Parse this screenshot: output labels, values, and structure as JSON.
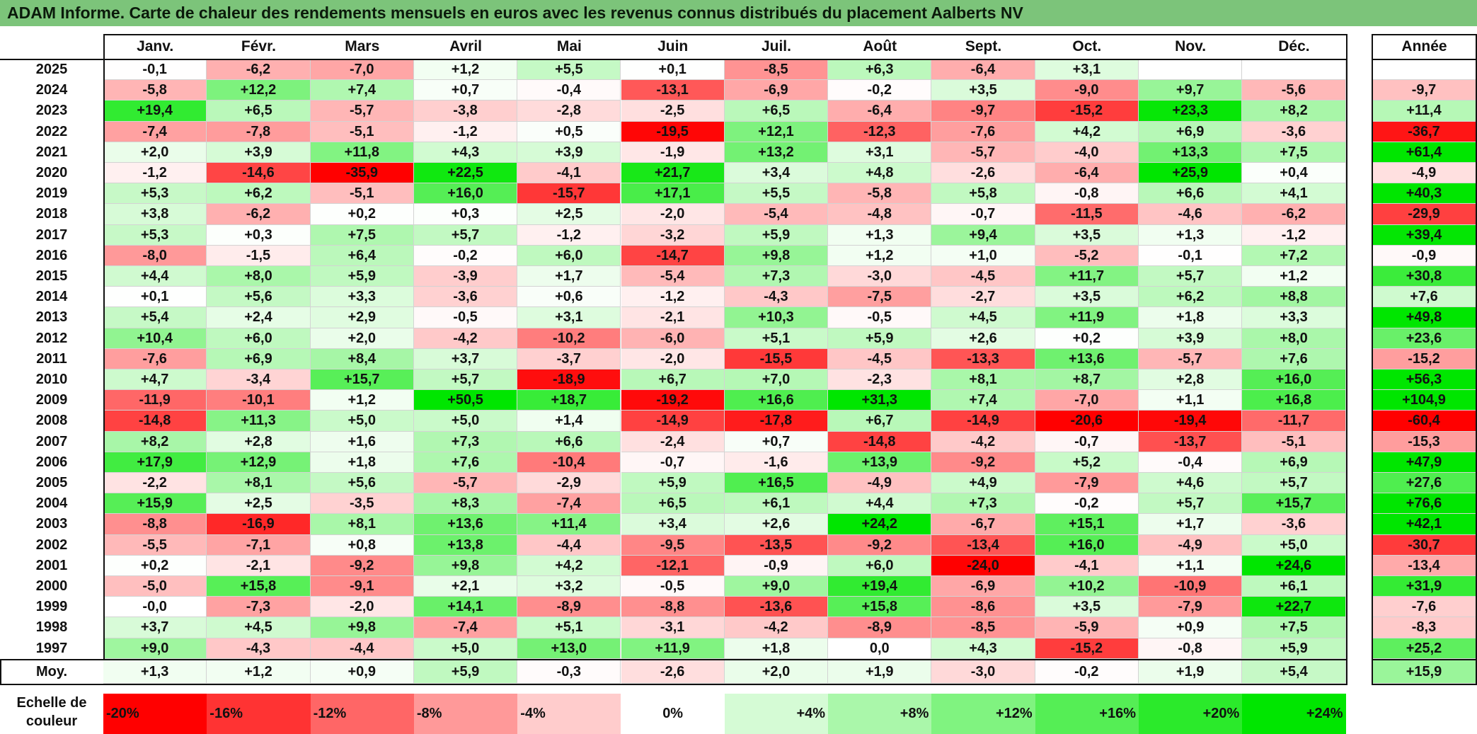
{
  "title": "ADAM Informe. Carte de chaleur des rendements mensuels en euros avec les revenus connus distribués du placement Aalberts NV",
  "chart_data": {
    "type": "heatmap",
    "months": [
      "Janv.",
      "Févr.",
      "Mars",
      "Avril",
      "Mai",
      "Juin",
      "Juil.",
      "Août",
      "Sept.",
      "Oct.",
      "Nov.",
      "Déc."
    ],
    "annual_header": "Année",
    "rows": [
      {
        "year": "2025",
        "values": [
          "-0,1",
          "-6,2",
          "-7,0",
          "+1,2",
          "+5,5",
          "+0,1",
          "-8,5",
          "+6,3",
          "-6,4",
          "+3,1",
          "",
          ""
        ],
        "annual": ""
      },
      {
        "year": "2024",
        "values": [
          "-5,8",
          "+12,2",
          "+7,4",
          "+0,7",
          "-0,4",
          "-13,1",
          "-6,9",
          "-0,2",
          "+3,5",
          "-9,0",
          "+9,7",
          "-5,6"
        ],
        "annual": "-9,7"
      },
      {
        "year": "2023",
        "values": [
          "+19,4",
          "+6,5",
          "-5,7",
          "-3,8",
          "-2,8",
          "-2,5",
          "+6,5",
          "-6,4",
          "-9,7",
          "-15,2",
          "+23,3",
          "+8,2"
        ],
        "annual": "+11,4"
      },
      {
        "year": "2022",
        "values": [
          "-7,4",
          "-7,8",
          "-5,1",
          "-1,2",
          "+0,5",
          "-19,5",
          "+12,1",
          "-12,3",
          "-7,6",
          "+4,2",
          "+6,9",
          "-3,6"
        ],
        "annual": "-36,7"
      },
      {
        "year": "2021",
        "values": [
          "+2,0",
          "+3,9",
          "+11,8",
          "+4,3",
          "+3,9",
          "-1,9",
          "+13,2",
          "+3,1",
          "-5,7",
          "-4,0",
          "+13,3",
          "+7,5"
        ],
        "annual": "+61,4"
      },
      {
        "year": "2020",
        "values": [
          "-1,2",
          "-14,6",
          "-35,9",
          "+22,5",
          "-4,1",
          "+21,7",
          "+3,4",
          "+4,8",
          "-2,6",
          "-6,4",
          "+25,9",
          "+0,4"
        ],
        "annual": "-4,9"
      },
      {
        "year": "2019",
        "values": [
          "+5,3",
          "+6,2",
          "-5,1",
          "+16,0",
          "-15,7",
          "+17,1",
          "+5,5",
          "-5,8",
          "+5,8",
          "-0,8",
          "+6,6",
          "+4,1"
        ],
        "annual": "+40,3"
      },
      {
        "year": "2018",
        "values": [
          "+3,8",
          "-6,2",
          "+0,2",
          "+0,3",
          "+2,5",
          "-2,0",
          "-5,4",
          "-4,8",
          "-0,7",
          "-11,5",
          "-4,6",
          "-6,2"
        ],
        "annual": "-29,9"
      },
      {
        "year": "2017",
        "values": [
          "+5,3",
          "+0,3",
          "+7,5",
          "+5,7",
          "-1,2",
          "-3,2",
          "+5,9",
          "+1,3",
          "+9,4",
          "+3,5",
          "+1,3",
          "-1,2"
        ],
        "annual": "+39,4"
      },
      {
        "year": "2016",
        "values": [
          "-8,0",
          "-1,5",
          "+6,4",
          "-0,2",
          "+6,0",
          "-14,7",
          "+9,8",
          "+1,2",
          "+1,0",
          "-5,2",
          "-0,1",
          "+7,2"
        ],
        "annual": "-0,9"
      },
      {
        "year": "2015",
        "values": [
          "+4,4",
          "+8,0",
          "+5,9",
          "-3,9",
          "+1,7",
          "-5,4",
          "+7,3",
          "-3,0",
          "-4,5",
          "+11,7",
          "+5,7",
          "+1,2"
        ],
        "annual": "+30,8"
      },
      {
        "year": "2014",
        "values": [
          "+0,1",
          "+5,6",
          "+3,3",
          "-3,6",
          "+0,6",
          "-1,2",
          "-4,3",
          "-7,5",
          "-2,7",
          "+3,5",
          "+6,2",
          "+8,8"
        ],
        "annual": "+7,6"
      },
      {
        "year": "2013",
        "values": [
          "+5,4",
          "+2,4",
          "+2,9",
          "-0,5",
          "+3,1",
          "-2,1",
          "+10,3",
          "-0,5",
          "+4,5",
          "+11,9",
          "+1,8",
          "+3,3"
        ],
        "annual": "+49,8"
      },
      {
        "year": "2012",
        "values": [
          "+10,4",
          "+6,0",
          "+2,0",
          "-4,2",
          "-10,2",
          "-6,0",
          "+5,1",
          "+5,9",
          "+2,6",
          "+0,2",
          "+3,9",
          "+8,0"
        ],
        "annual": "+23,6"
      },
      {
        "year": "2011",
        "values": [
          "-7,6",
          "+6,9",
          "+8,4",
          "+3,7",
          "-3,7",
          "-2,0",
          "-15,5",
          "-4,5",
          "-13,3",
          "+13,6",
          "-5,7",
          "+7,6"
        ],
        "annual": "-15,2"
      },
      {
        "year": "2010",
        "values": [
          "+4,7",
          "-3,4",
          "+15,7",
          "+5,7",
          "-18,9",
          "+6,7",
          "+7,0",
          "-2,3",
          "+8,1",
          "+8,7",
          "+2,8",
          "+16,0"
        ],
        "annual": "+56,3"
      },
      {
        "year": "2009",
        "values": [
          "-11,9",
          "-10,1",
          "+1,2",
          "+50,5",
          "+18,7",
          "-19,2",
          "+16,6",
          "+31,3",
          "+7,4",
          "-7,0",
          "+1,1",
          "+16,8"
        ],
        "annual": "+104,9"
      },
      {
        "year": "2008",
        "values": [
          "-14,8",
          "+11,3",
          "+5,0",
          "+5,0",
          "+1,4",
          "-14,9",
          "-17,8",
          "+6,7",
          "-14,9",
          "-20,6",
          "-19,4",
          "-11,7"
        ],
        "annual": "-60,4"
      },
      {
        "year": "2007",
        "values": [
          "+8,2",
          "+2,8",
          "+1,6",
          "+7,3",
          "+6,6",
          "-2,4",
          "+0,7",
          "-14,8",
          "-4,2",
          "-0,7",
          "-13,7",
          "-5,1"
        ],
        "annual": "-15,3"
      },
      {
        "year": "2006",
        "values": [
          "+17,9",
          "+12,9",
          "+1,8",
          "+7,6",
          "-10,4",
          "-0,7",
          "-1,6",
          "+13,9",
          "-9,2",
          "+5,2",
          "-0,4",
          "+6,9"
        ],
        "annual": "+47,9"
      },
      {
        "year": "2005",
        "values": [
          "-2,2",
          "+8,1",
          "+5,6",
          "-5,7",
          "-2,9",
          "+5,9",
          "+16,5",
          "-4,9",
          "+4,9",
          "-7,9",
          "+4,6",
          "+5,7"
        ],
        "annual": "+27,6"
      },
      {
        "year": "2004",
        "values": [
          "+15,9",
          "+2,5",
          "-3,5",
          "+8,3",
          "-7,4",
          "+6,5",
          "+6,1",
          "+4,4",
          "+7,3",
          "-0,2",
          "+5,7",
          "+15,7"
        ],
        "annual": "+76,6"
      },
      {
        "year": "2003",
        "values": [
          "-8,8",
          "-16,9",
          "+8,1",
          "+13,6",
          "+11,4",
          "+3,4",
          "+2,6",
          "+24,2",
          "-6,7",
          "+15,1",
          "+1,7",
          "-3,6"
        ],
        "annual": "+42,1"
      },
      {
        "year": "2002",
        "values": [
          "-5,5",
          "-7,1",
          "+0,8",
          "+13,8",
          "-4,4",
          "-9,5",
          "-13,5",
          "-9,2",
          "-13,4",
          "+16,0",
          "-4,9",
          "+5,0"
        ],
        "annual": "-30,7"
      },
      {
        "year": "2001",
        "values": [
          "+0,2",
          "-2,1",
          "-9,2",
          "+9,8",
          "+4,2",
          "-12,1",
          "-0,9",
          "+6,0",
          "-24,0",
          "-4,1",
          "+1,1",
          "+24,6"
        ],
        "annual": "-13,4"
      },
      {
        "year": "2000",
        "values": [
          "-5,0",
          "+15,8",
          "-9,1",
          "+2,1",
          "+3,2",
          "-0,5",
          "+9,0",
          "+19,4",
          "-6,9",
          "+10,2",
          "-10,9",
          "+6,1"
        ],
        "annual": "+31,9"
      },
      {
        "year": "1999",
        "values": [
          "-0,0",
          "-7,3",
          "-2,0",
          "+14,1",
          "-8,9",
          "-8,8",
          "-13,6",
          "+15,8",
          "-8,6",
          "+3,5",
          "-7,9",
          "+22,7"
        ],
        "annual": "-7,6"
      },
      {
        "year": "1998",
        "values": [
          "+3,7",
          "+4,5",
          "+9,8",
          "-7,4",
          "+5,1",
          "-3,1",
          "-4,2",
          "-8,9",
          "-8,5",
          "-5,9",
          "+0,9",
          "+7,5"
        ],
        "annual": "-8,3"
      },
      {
        "year": "1997",
        "values": [
          "+9,0",
          "-4,3",
          "-4,4",
          "+5,0",
          "+13,0",
          "+11,9",
          "+1,8",
          "0,0",
          "+4,3",
          "-15,2",
          "-0,8",
          "+5,9"
        ],
        "annual": "+25,2"
      }
    ],
    "average": {
      "label": "Moy.",
      "values": [
        "+1,3",
        "+1,2",
        "+0,9",
        "+5,9",
        "-0,3",
        "-2,6",
        "+2,0",
        "+1,9",
        "-3,0",
        "-0,2",
        "+1,9",
        "+5,4"
      ],
      "annual": "+15,9"
    },
    "color_scale": {
      "label": "Echelle de couleur",
      "stops": [
        "-20%",
        "-16%",
        "-12%",
        "-8%",
        "-4%",
        "0%",
        "+4%",
        "+8%",
        "+12%",
        "+16%",
        "+20%",
        "+24%"
      ],
      "stop_values": [
        -20,
        -16,
        -12,
        -8,
        -4,
        0,
        4,
        8,
        12,
        16,
        20,
        24
      ],
      "negative_color": "#ff0000",
      "neutral_color": "#ffffff",
      "positive_color": "#00e600"
    }
  }
}
